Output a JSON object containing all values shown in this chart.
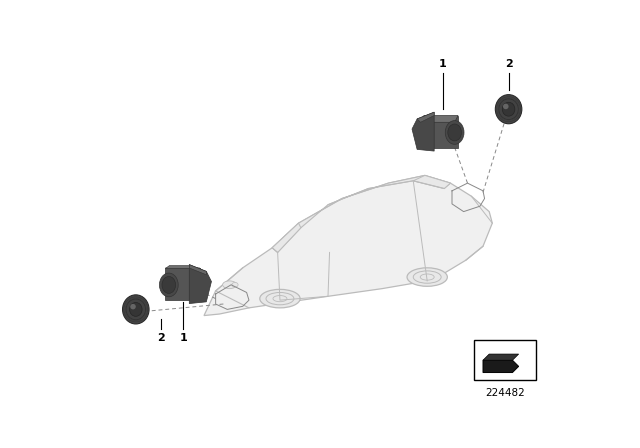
{
  "background_color": "#ffffff",
  "fig_width": 6.4,
  "fig_height": 4.48,
  "dpi": 100,
  "diagram_number": "224482",
  "sensor_dark": "#484848",
  "sensor_mid": "#555555",
  "sensor_light": "#666666",
  "sensor_highlight": "#707070",
  "car_face": "#f0f0f0",
  "car_line": "#bbbbbb",
  "line_color": "#000000",
  "text_color": "#000000",
  "callout_line": "#888888"
}
